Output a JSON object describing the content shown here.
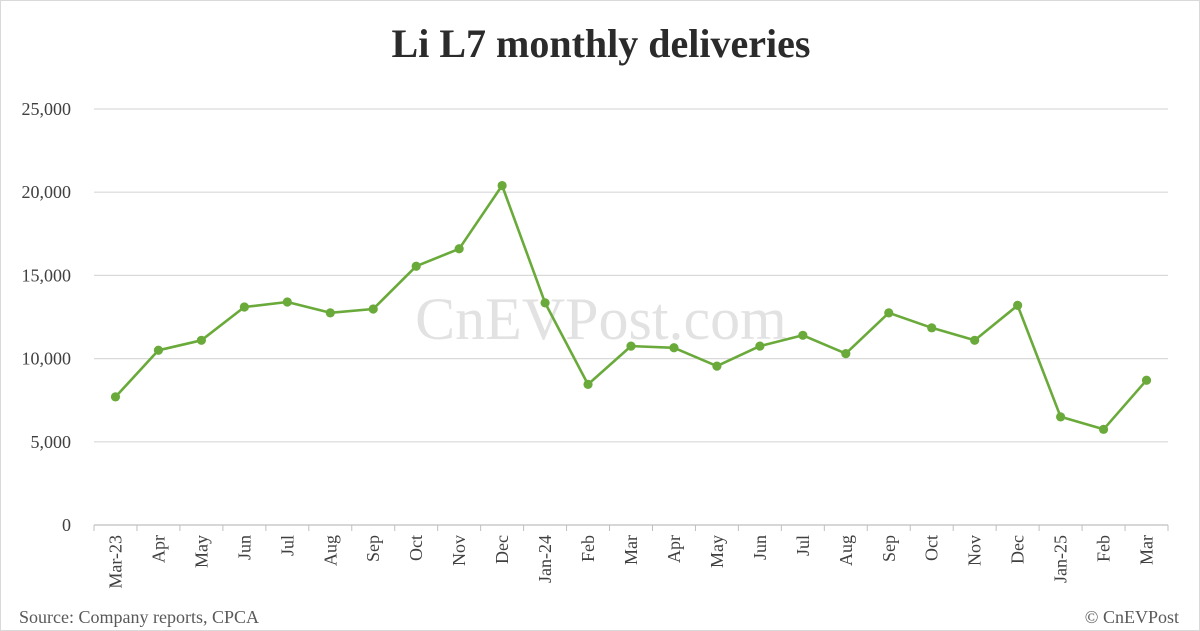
{
  "chart_data": {
    "type": "line",
    "title": "Li L7 monthly deliveries",
    "xlabel": "",
    "ylabel": "",
    "categories": [
      "Mar-23",
      "Apr",
      "May",
      "Jun",
      "Jul",
      "Aug",
      "Sep",
      "Oct",
      "Nov",
      "Dec",
      "Jan-24",
      "Feb",
      "Mar",
      "Apr",
      "May",
      "Jun",
      "Jul",
      "Aug",
      "Sep",
      "Oct",
      "Nov",
      "Dec",
      "Jan-25",
      "Feb",
      "Mar"
    ],
    "series": [
      {
        "values": [
          7700,
          10500,
          11100,
          13100,
          13400,
          12750,
          12980,
          15550,
          16600,
          20400,
          13350,
          8450,
          10750,
          10650,
          9550,
          10750,
          11400,
          10300,
          12750,
          11850,
          11100,
          13200,
          6500,
          5750,
          8700
        ],
        "color": "#6aaa3a"
      }
    ],
    "ylim": [
      0,
      25000
    ],
    "yticks": [
      0,
      5000,
      10000,
      15000,
      20000,
      25000
    ],
    "ytick_labels": [
      "0",
      "5,000",
      "10,000",
      "15,000",
      "20,000",
      "25,000"
    ],
    "grid": true,
    "legend": "none"
  },
  "footer": {
    "source": "Source: Company reports, CPCA",
    "copyright": "© CnEVPost"
  },
  "watermark": "CnEVPost.com",
  "colors": {
    "line": "#6aaa3a",
    "grid": "#d9d9d9",
    "axis": "#bfbfbf"
  }
}
